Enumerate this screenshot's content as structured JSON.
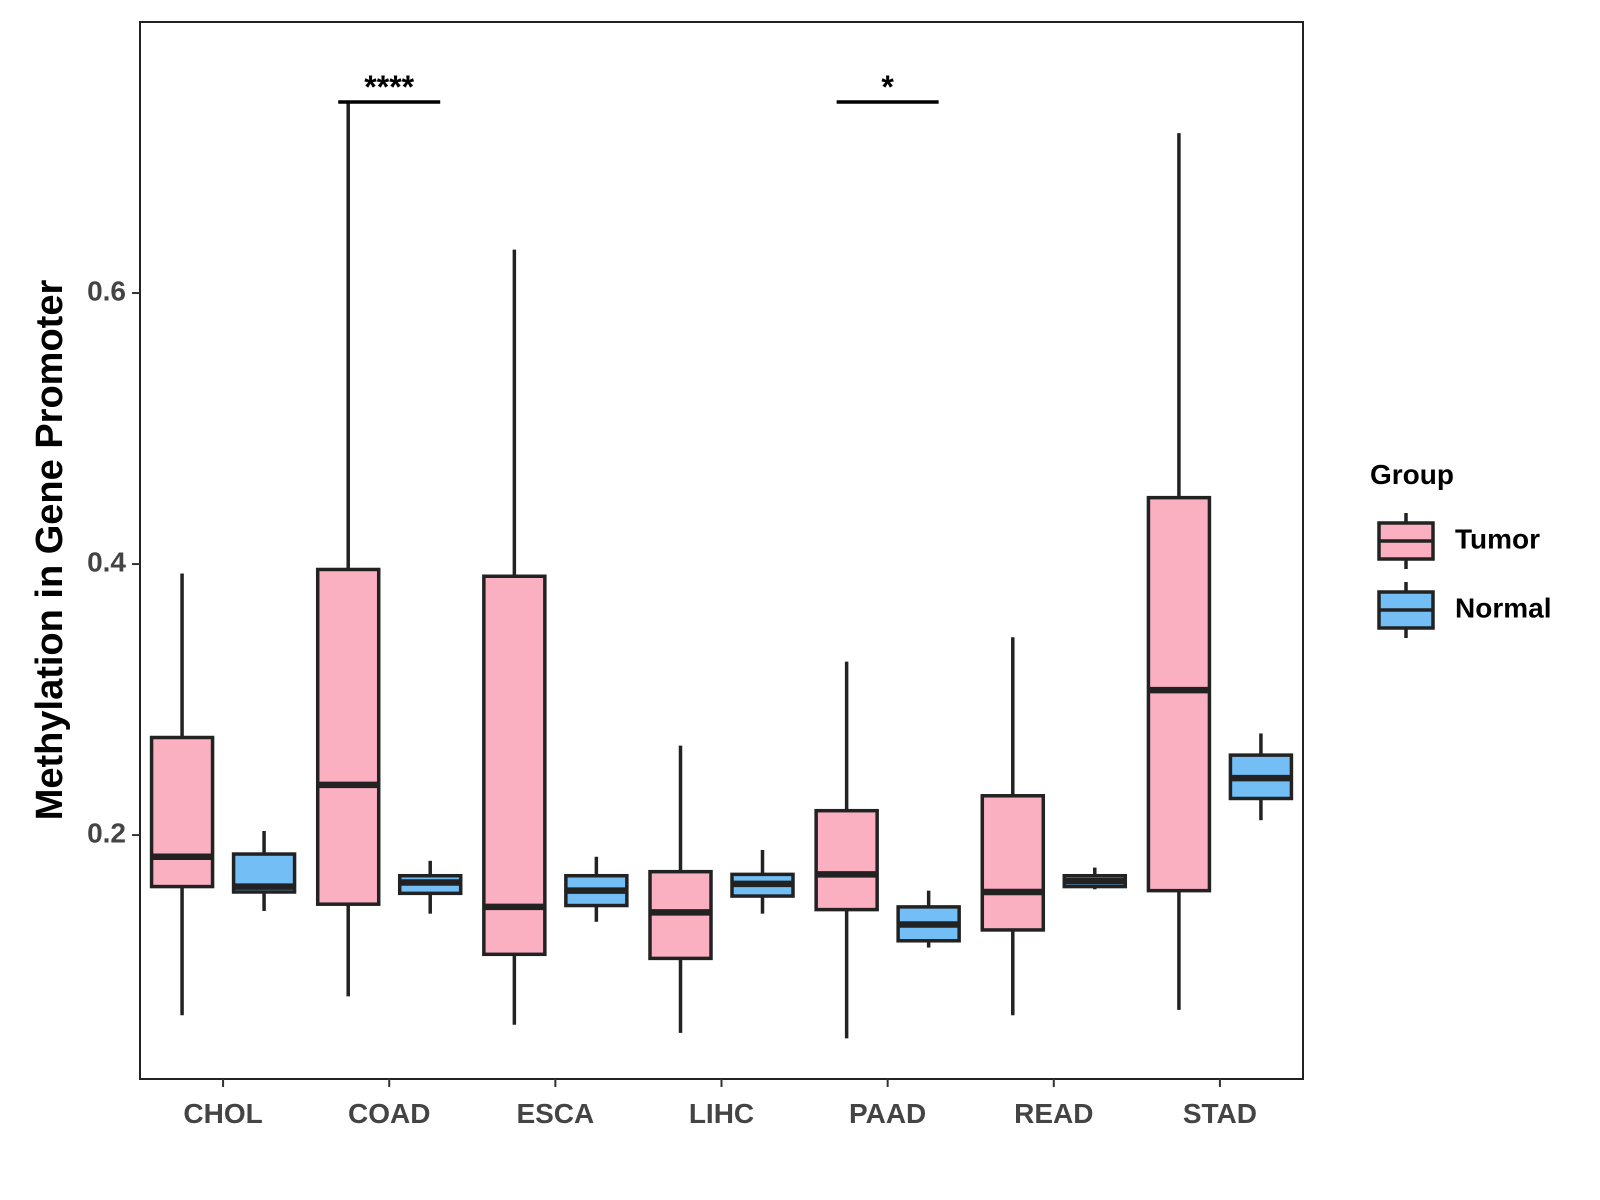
{
  "chart_data": {
    "type": "boxplot",
    "title": "",
    "xlabel": "",
    "ylabel": "Methylation in Gene Promoter",
    "ylim": [
      0.02,
      0.8
    ],
    "yticks": [
      0.2,
      0.4,
      0.6
    ],
    "ytick_labels": [
      "0.2",
      "0.4",
      "0.6"
    ],
    "categories": [
      "CHOL",
      "COAD",
      "ESCA",
      "LIHC",
      "PAAD",
      "READ",
      "STAD"
    ],
    "legend": {
      "title": "Group",
      "position": "right",
      "entries": [
        {
          "name": "Tumor",
          "color": "#FBB0C2"
        },
        {
          "name": "Normal",
          "color": "#72BEF5"
        }
      ]
    },
    "series": [
      {
        "name": "Tumor",
        "color": "#FBB0C2",
        "boxes": [
          {
            "category": "CHOL",
            "min": 0.067,
            "q1": 0.162,
            "median": 0.184,
            "q3": 0.272,
            "max": 0.393
          },
          {
            "category": "COAD",
            "min": 0.081,
            "q1": 0.149,
            "median": 0.237,
            "q3": 0.396,
            "max": 0.742
          },
          {
            "category": "ESCA",
            "min": 0.06,
            "q1": 0.112,
            "median": 0.147,
            "q3": 0.391,
            "max": 0.632
          },
          {
            "category": "LIHC",
            "min": 0.054,
            "q1": 0.109,
            "median": 0.143,
            "q3": 0.173,
            "max": 0.266
          },
          {
            "category": "PAAD",
            "min": 0.05,
            "q1": 0.145,
            "median": 0.171,
            "q3": 0.218,
            "max": 0.328
          },
          {
            "category": "READ",
            "min": 0.067,
            "q1": 0.13,
            "median": 0.158,
            "q3": 0.229,
            "max": 0.346
          },
          {
            "category": "STAD",
            "min": 0.071,
            "q1": 0.159,
            "median": 0.307,
            "q3": 0.449,
            "max": 0.718
          }
        ]
      },
      {
        "name": "Normal",
        "color": "#72BEF5",
        "boxes": [
          {
            "category": "CHOL",
            "min": 0.144,
            "q1": 0.158,
            "median": 0.162,
            "q3": 0.186,
            "max": 0.203
          },
          {
            "category": "COAD",
            "min": 0.142,
            "q1": 0.157,
            "median": 0.165,
            "q3": 0.17,
            "max": 0.181
          },
          {
            "category": "ESCA",
            "min": 0.136,
            "q1": 0.148,
            "median": 0.159,
            "q3": 0.17,
            "max": 0.184
          },
          {
            "category": "LIHC",
            "min": 0.142,
            "q1": 0.155,
            "median": 0.164,
            "q3": 0.171,
            "max": 0.189
          },
          {
            "category": "PAAD",
            "min": 0.117,
            "q1": 0.122,
            "median": 0.134,
            "q3": 0.147,
            "max": 0.159
          },
          {
            "category": "READ",
            "min": 0.16,
            "q1": 0.162,
            "median": 0.166,
            "q3": 0.17,
            "max": 0.176
          },
          {
            "category": "STAD",
            "min": 0.211,
            "q1": 0.227,
            "median": 0.242,
            "q3": 0.259,
            "max": 0.275
          }
        ]
      }
    ],
    "annotations": [
      {
        "category": "COAD",
        "label": "****",
        "y": 0.741
      },
      {
        "category": "PAAD",
        "label": "*",
        "y": 0.741
      }
    ],
    "grid": false
  }
}
